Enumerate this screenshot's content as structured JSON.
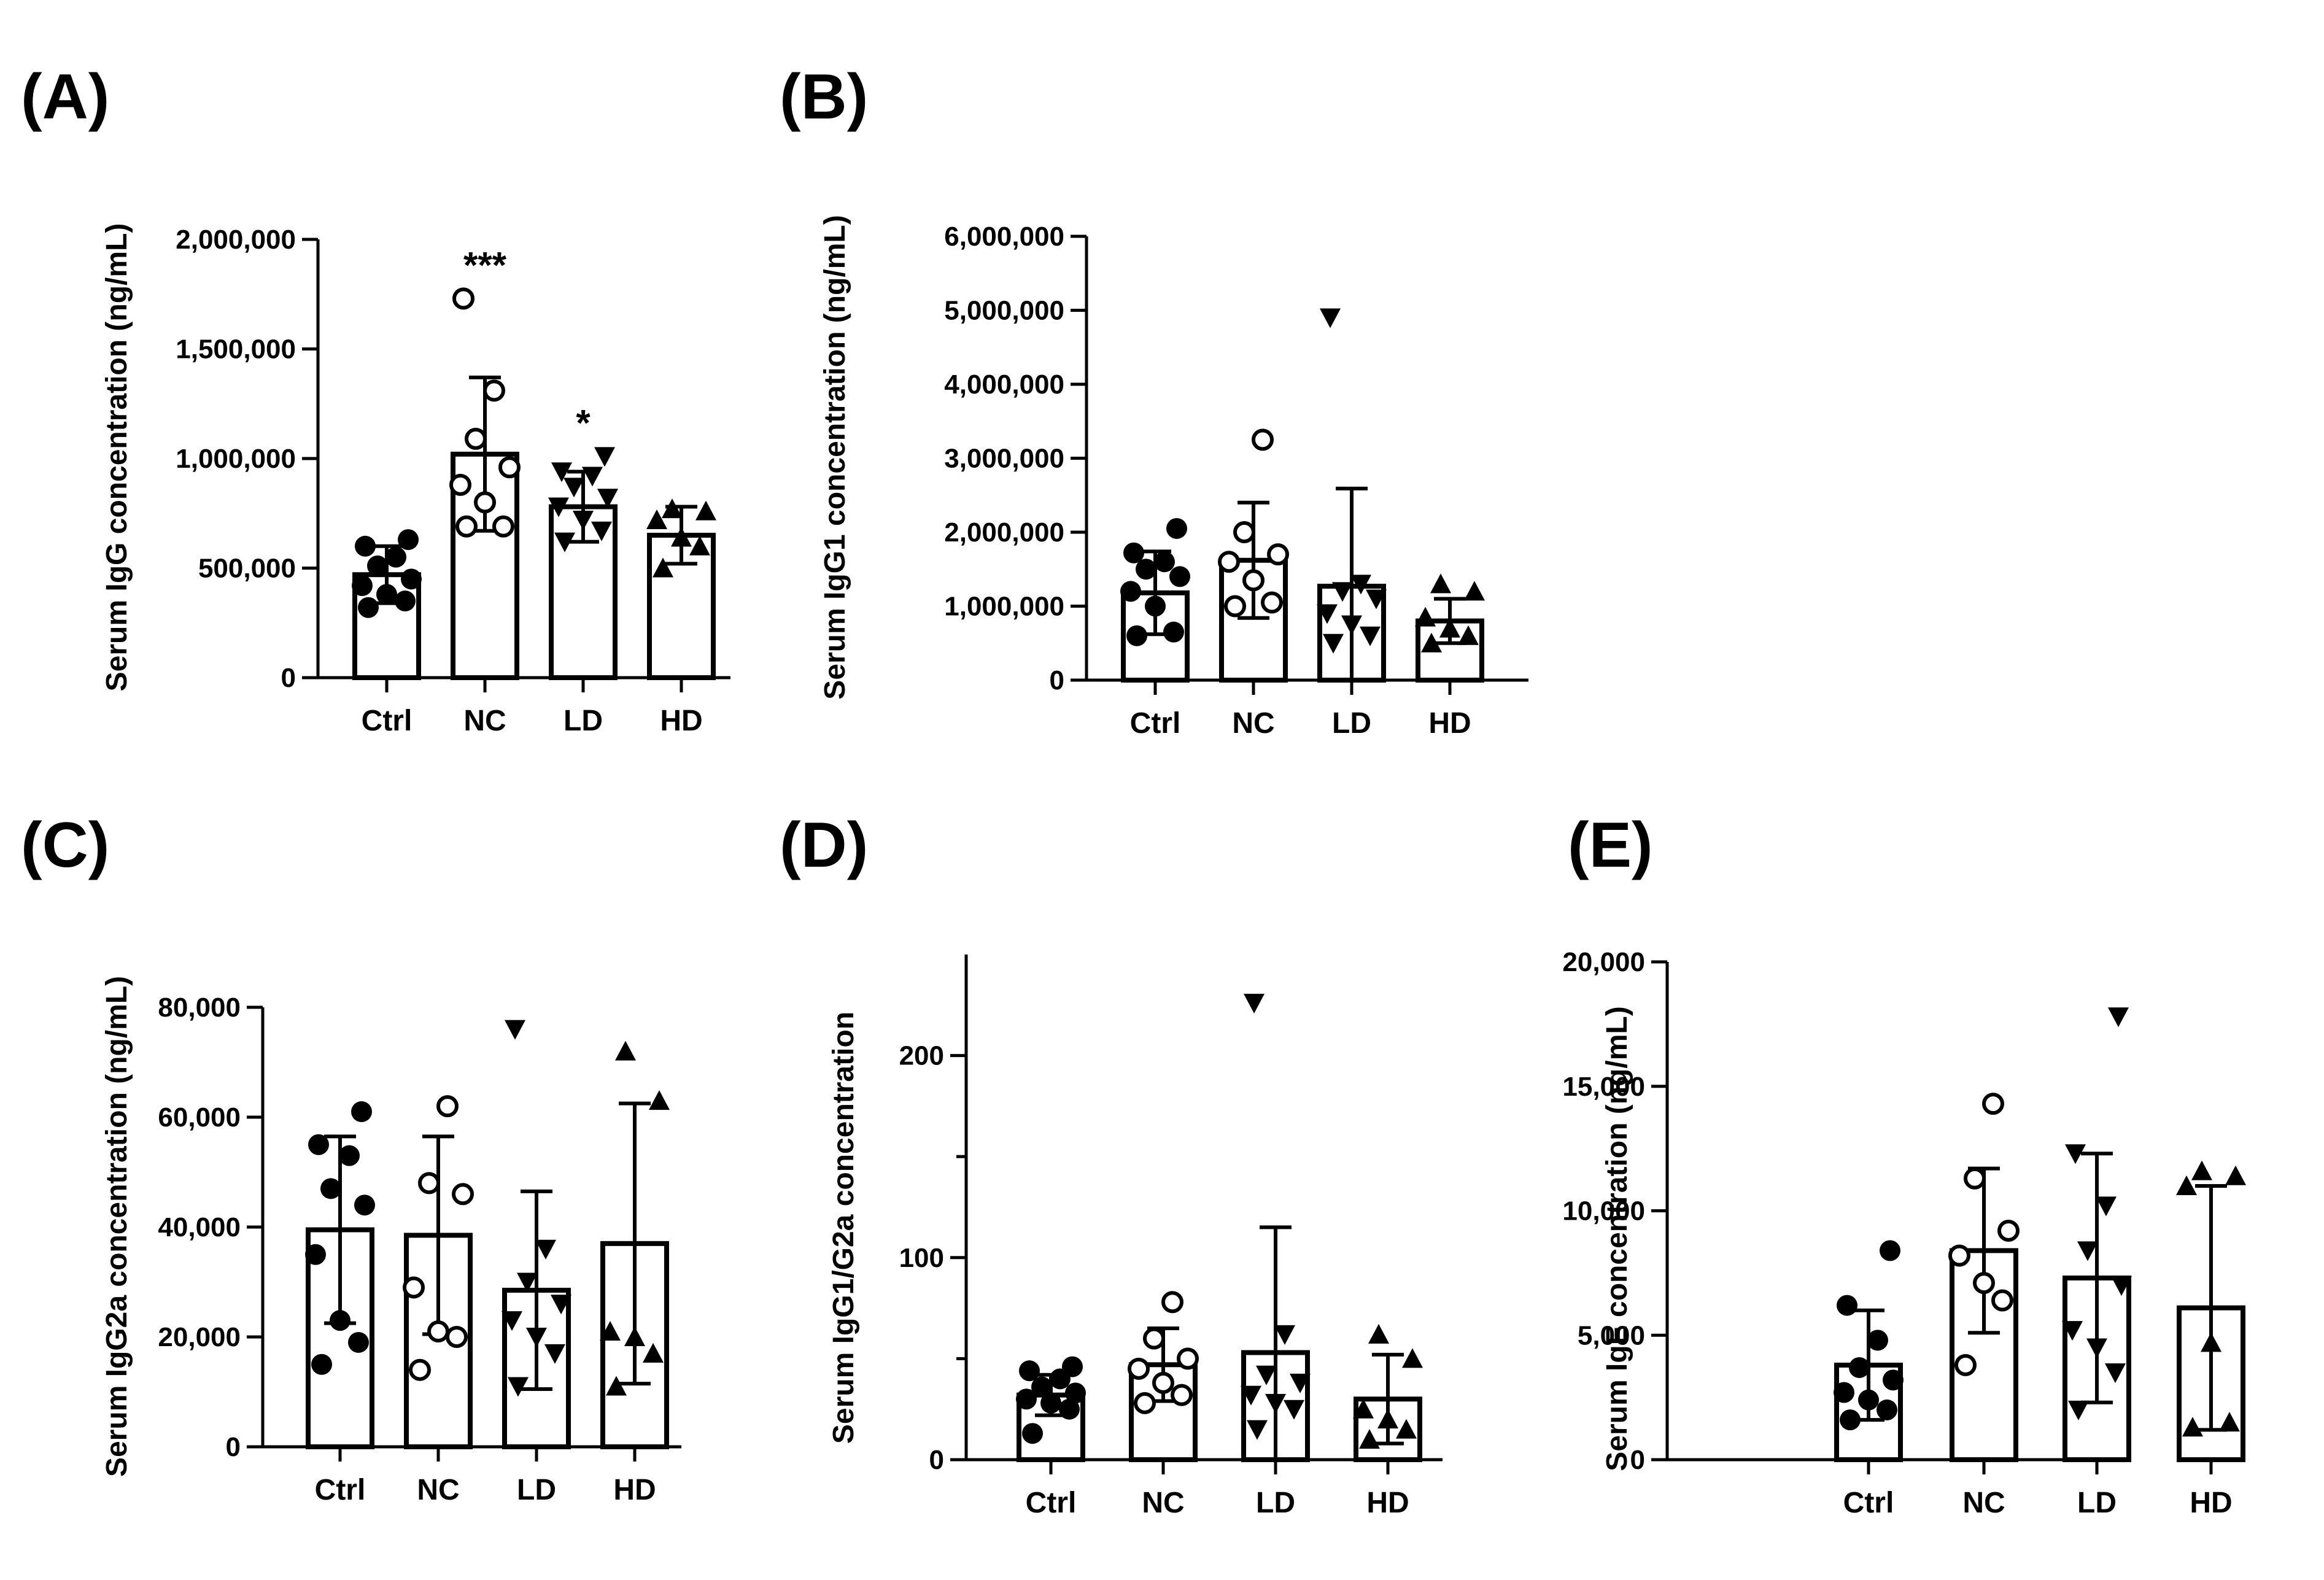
{
  "figure_type": "grouped bar charts with individual data points",
  "chart_data": [
    {
      "type": "bar",
      "panel": "(A)",
      "title": "",
      "xlabel": "",
      "ylabel": "Serum IgG concentration (ng/mL)",
      "categories": [
        "Ctrl",
        "NC",
        "LD",
        "HD"
      ],
      "ylim": [
        0,
        2000000
      ],
      "yticks": [
        0,
        500000,
        1000000,
        1500000,
        2000000
      ],
      "ytick_labels": [
        "0",
        "500,000",
        "1,000,000",
        "1,500,000",
        "2,000,000"
      ],
      "means": [
        470000,
        1020000,
        780000,
        650000
      ],
      "sd": [
        130000,
        350000,
        160000,
        130000
      ],
      "markers": [
        "filled-circle",
        "open-circle",
        "filled-down-triangle",
        "filled-up-triangle"
      ],
      "points": [
        [
          320000,
          350000,
          380000,
          420000,
          450000,
          510000,
          550000,
          600000,
          630000
        ],
        [
          690000,
          690000,
          800000,
          880000,
          960000,
          1090000,
          1310000,
          1730000
        ],
        [
          620000,
          670000,
          720000,
          780000,
          820000,
          870000,
          920000,
          940000,
          1010000
        ],
        [
          500000,
          600000,
          640000,
          720000,
          760000,
          770000
        ]
      ],
      "significance": [
        "",
        "***",
        "*",
        ""
      ],
      "grid": false,
      "legend": "none"
    },
    {
      "type": "bar",
      "panel": "(B)",
      "title": "",
      "xlabel": "",
      "ylabel": "Serum IgG1 concentration (ng/mL)",
      "categories": [
        "Ctrl",
        "NC",
        "LD",
        "HD"
      ],
      "ylim": [
        0,
        6000000
      ],
      "yticks": [
        0,
        1000000,
        2000000,
        3000000,
        4000000,
        5000000,
        6000000
      ],
      "ytick_labels": [
        "0",
        "1,000,000",
        "2,000,000",
        "3,000,000",
        "4,000,000",
        "5,000,000",
        "6,000,000"
      ],
      "means": [
        1180000,
        1620000,
        1270000,
        800000
      ],
      "sd": [
        560000,
        780000,
        1320000,
        300000
      ],
      "markers": [
        "filled-circle",
        "open-circle",
        "filled-down-triangle",
        "filled-up-triangle"
      ],
      "points": [
        [
          600000,
          650000,
          1000000,
          1200000,
          1400000,
          1500000,
          1600000,
          1720000,
          2050000
        ],
        [
          1000000,
          1050000,
          1350000,
          1600000,
          1700000,
          2000000,
          3250000
        ],
        [
          500000,
          600000,
          750000,
          900000,
          1100000,
          1200000,
          1300000,
          4900000
        ],
        [
          500000,
          600000,
          700000,
          850000,
          1200000,
          1300000
        ]
      ],
      "significance": [
        "",
        "",
        "",
        ""
      ],
      "grid": false,
      "legend": "none"
    },
    {
      "type": "bar",
      "panel": "(C)",
      "title": "",
      "xlabel": "",
      "ylabel": "Serum IgG2a concentration (ng/mL)",
      "categories": [
        "Ctrl",
        "NC",
        "LD",
        "HD"
      ],
      "ylim": [
        0,
        80000
      ],
      "yticks": [
        0,
        20000,
        40000,
        60000,
        80000
      ],
      "ytick_labels": [
        "0",
        "20,000",
        "40,000",
        "60,000",
        "80,000"
      ],
      "means": [
        39500,
        38500,
        28500,
        37000
      ],
      "sd": [
        17000,
        18000,
        18000,
        25500
      ],
      "markers": [
        "filled-circle",
        "open-circle",
        "filled-down-triangle",
        "filled-up-triangle"
      ],
      "points": [
        [
          15000,
          19000,
          23000,
          35000,
          44000,
          47000,
          53000,
          55000,
          61000
        ],
        [
          14000,
          20000,
          21000,
          29000,
          46000,
          48000,
          62000
        ],
        [
          11000,
          17000,
          20000,
          23000,
          26000,
          30000,
          36000,
          76000
        ],
        [
          11000,
          17000,
          20000,
          21000,
          63000,
          72000
        ]
      ],
      "significance": [
        "",
        "",
        "",
        ""
      ],
      "grid": false,
      "legend": "none"
    },
    {
      "type": "bar",
      "panel": "(D)",
      "title": "",
      "xlabel": "",
      "ylabel": "Serum IgG1/G2a concentration",
      "categories": [
        "Ctrl",
        "NC",
        "LD",
        "HD"
      ],
      "ylim": [
        0,
        250
      ],
      "yticks": [
        0,
        100,
        200
      ],
      "ytick_labels": [
        "0",
        "100",
        "200"
      ],
      "means": [
        32,
        47,
        53,
        30
      ],
      "sd": [
        10,
        18,
        62,
        22
      ],
      "markers": [
        "filled-circle",
        "open-circle",
        "filled-down-triangle",
        "filled-up-triangle"
      ],
      "points": [
        [
          13,
          25,
          28,
          30,
          33,
          36,
          40,
          44,
          46
        ],
        [
          28,
          32,
          38,
          45,
          50,
          60,
          78
        ],
        [
          15,
          25,
          28,
          32,
          38,
          42,
          62,
          226
        ],
        [
          10,
          15,
          20,
          25,
          50,
          62
        ]
      ],
      "significance": [
        "",
        "",
        "",
        ""
      ],
      "grid": false,
      "legend": "none"
    },
    {
      "type": "bar",
      "panel": "(E)",
      "title": "",
      "xlabel": "",
      "ylabel": "Serum IgE concentration (ng/mL)",
      "categories": [
        "Ctrl",
        "NC",
        "LD",
        "HD"
      ],
      "ylim": [
        0,
        20000
      ],
      "yticks": [
        0,
        5000,
        10000,
        15000,
        20000
      ],
      "ytick_labels": [
        "0",
        "5,000",
        "10,000",
        "15,000",
        "20,000"
      ],
      "means": [
        3800,
        8400,
        7300,
        6100
      ],
      "sd": [
        2200,
        3300,
        5000,
        4900
      ],
      "markers": [
        "filled-circle",
        "open-circle",
        "filled-down-triangle",
        "filled-up-triangle"
      ],
      "points": [
        [
          1600,
          2000,
          2400,
          2700,
          3200,
          3700,
          4800,
          6200,
          8400
        ],
        [
          3800,
          6400,
          7100,
          8200,
          9200,
          11300,
          14300
        ],
        [
          2000,
          3500,
          4500,
          5200,
          7000,
          8400,
          10200,
          12300,
          17800
        ],
        [
          1300,
          1500,
          4700,
          11000,
          11400,
          11600
        ]
      ],
      "significance": [
        "",
        "",
        "",
        ""
      ],
      "grid": false,
      "legend": "none"
    }
  ]
}
